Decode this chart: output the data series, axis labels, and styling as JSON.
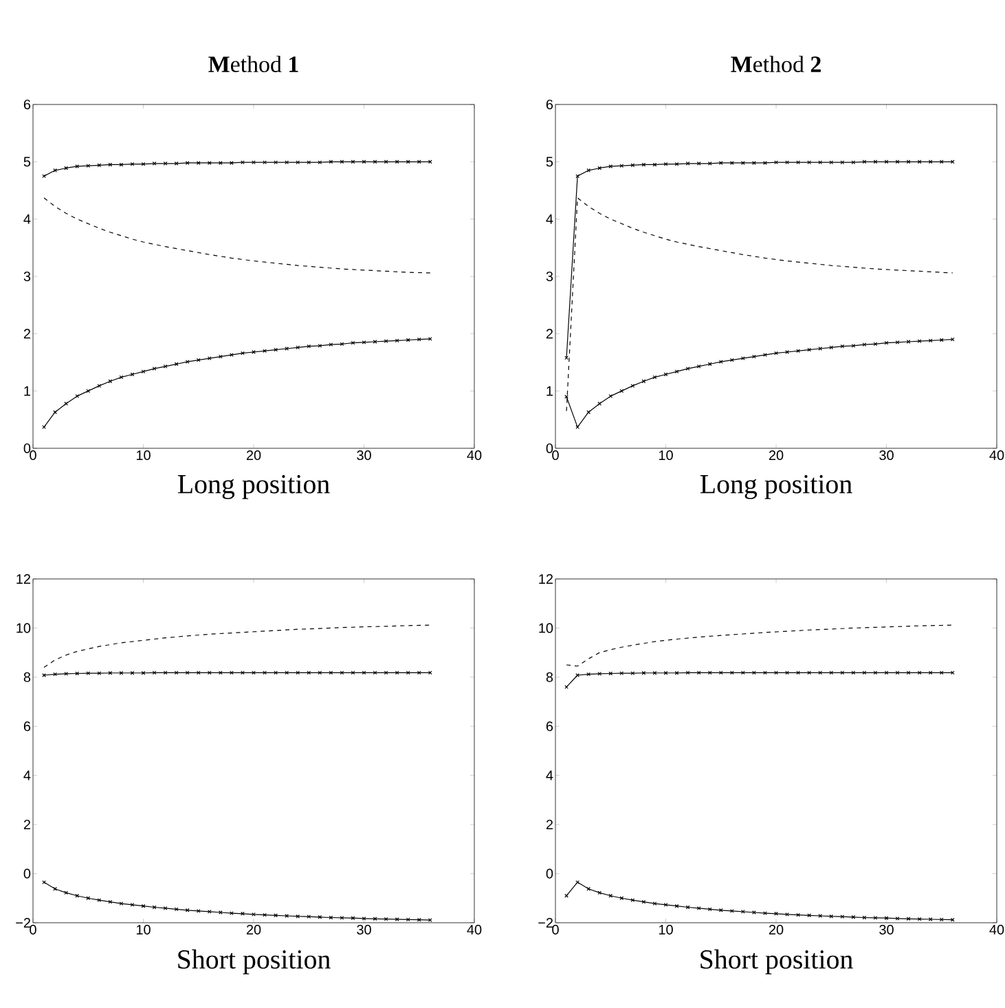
{
  "chart_data": [
    {
      "type": "line",
      "title": "**M**ethod **1**",
      "xlabel": "Long position",
      "xlim": [
        0,
        40
      ],
      "xticks": [
        0,
        10,
        20,
        30,
        40
      ],
      "ylim": [
        0,
        6
      ],
      "yticks": [
        0,
        1,
        2,
        3,
        4,
        5,
        6
      ],
      "x": [
        1,
        2,
        3,
        4,
        5,
        6,
        7,
        8,
        9,
        10,
        11,
        12,
        13,
        14,
        15,
        16,
        17,
        18,
        19,
        20,
        21,
        22,
        23,
        24,
        25,
        26,
        27,
        28,
        29,
        30,
        31,
        32,
        33,
        34,
        35,
        36
      ],
      "series": [
        {
          "color": "#000000",
          "marker": "cross",
          "line_style": "solid",
          "values": [
            4.75,
            4.85,
            4.89,
            4.92,
            4.93,
            4.94,
            4.95,
            4.95,
            4.96,
            4.96,
            4.97,
            4.97,
            4.97,
            4.98,
            4.98,
            4.98,
            4.98,
            4.98,
            4.99,
            4.99,
            4.99,
            4.99,
            4.99,
            4.99,
            4.99,
            4.99,
            5,
            5,
            5,
            5,
            5,
            5,
            5,
            5,
            5,
            5
          ]
        },
        {
          "color": "#000000",
          "marker": "none",
          "line_style": "dashed",
          "x": [
            1,
            2,
            3,
            4,
            5,
            6,
            7,
            8,
            9,
            10,
            12,
            14,
            16,
            18,
            20,
            22,
            24,
            26,
            28,
            30,
            32,
            34,
            36
          ],
          "values": [
            4.37,
            4.22,
            4.1,
            4.0,
            3.92,
            3.84,
            3.77,
            3.71,
            3.65,
            3.6,
            3.52,
            3.45,
            3.38,
            3.32,
            3.27,
            3.23,
            3.19,
            3.16,
            3.13,
            3.11,
            3.09,
            3.07,
            3.06
          ]
        },
        {
          "color": "#000000",
          "marker": "cross",
          "line_style": "solid",
          "values": [
            0.37,
            0.63,
            0.78,
            0.91,
            1.0,
            1.09,
            1.17,
            1.24,
            1.29,
            1.34,
            1.39,
            1.43,
            1.47,
            1.51,
            1.54,
            1.57,
            1.6,
            1.63,
            1.66,
            1.68,
            1.7,
            1.72,
            1.74,
            1.76,
            1.78,
            1.79,
            1.81,
            1.82,
            1.84,
            1.85,
            1.86,
            1.87,
            1.88,
            1.89,
            1.9,
            1.91
          ]
        }
      ]
    },
    {
      "type": "line",
      "title": "**M**ethod **2**",
      "xlabel": "Long position",
      "xlim": [
        0,
        40
      ],
      "xticks": [
        0,
        10,
        20,
        30,
        40
      ],
      "ylim": [
        0,
        6
      ],
      "yticks": [
        0,
        1,
        2,
        3,
        4,
        5,
        6
      ],
      "x": [
        1,
        2,
        3,
        4,
        5,
        6,
        7,
        8,
        9,
        10,
        11,
        12,
        13,
        14,
        15,
        16,
        17,
        18,
        19,
        20,
        21,
        22,
        23,
        24,
        25,
        26,
        27,
        28,
        29,
        30,
        31,
        32,
        33,
        34,
        35,
        36
      ],
      "series": [
        {
          "color": "#000000",
          "marker": "cross",
          "line_style": "solid",
          "values": [
            1.58,
            4.75,
            4.85,
            4.89,
            4.92,
            4.93,
            4.94,
            4.95,
            4.95,
            4.96,
            4.96,
            4.97,
            4.97,
            4.97,
            4.98,
            4.98,
            4.98,
            4.98,
            4.98,
            4.99,
            4.99,
            4.99,
            4.99,
            4.99,
            4.99,
            4.99,
            4.99,
            5,
            5,
            5,
            5,
            5,
            5,
            5,
            5,
            5
          ]
        },
        {
          "color": "#000000",
          "marker": "none",
          "line_style": "dashed",
          "x": [
            1,
            2,
            3,
            4,
            5,
            6,
            7,
            8,
            9,
            10,
            11,
            13,
            15,
            17,
            19,
            21,
            23,
            25,
            27,
            29,
            31,
            33,
            35,
            36
          ],
          "values": [
            0.65,
            4.37,
            4.22,
            4.1,
            4.0,
            3.92,
            3.84,
            3.77,
            3.71,
            3.65,
            3.6,
            3.52,
            3.45,
            3.38,
            3.32,
            3.27,
            3.23,
            3.19,
            3.16,
            3.13,
            3.11,
            3.09,
            3.07,
            3.06
          ]
        },
        {
          "color": "#000000",
          "marker": "cross",
          "line_style": "solid",
          "values": [
            0.9,
            0.37,
            0.63,
            0.78,
            0.91,
            1.0,
            1.09,
            1.17,
            1.24,
            1.29,
            1.34,
            1.39,
            1.43,
            1.47,
            1.51,
            1.54,
            1.57,
            1.6,
            1.63,
            1.66,
            1.68,
            1.7,
            1.72,
            1.74,
            1.76,
            1.78,
            1.79,
            1.81,
            1.82,
            1.84,
            1.85,
            1.86,
            1.87,
            1.88,
            1.89,
            1.9
          ]
        }
      ]
    },
    {
      "type": "line",
      "xlabel": "Short position",
      "xlim": [
        0,
        40
      ],
      "xticks": [
        0,
        10,
        20,
        30,
        40
      ],
      "ylim": [
        -2,
        12
      ],
      "yticks": [
        {
          "value": -2,
          "label": "−2"
        },
        0,
        2,
        4,
        6,
        8,
        10,
        12
      ],
      "x": [
        1,
        2,
        3,
        4,
        5,
        6,
        7,
        8,
        9,
        10,
        11,
        12,
        13,
        14,
        15,
        16,
        17,
        18,
        19,
        20,
        21,
        22,
        23,
        24,
        25,
        26,
        27,
        28,
        29,
        30,
        31,
        32,
        33,
        34,
        35,
        36
      ],
      "series": [
        {
          "color": "#000000",
          "marker": "none",
          "line_style": "dashed",
          "x": [
            1,
            2,
            3,
            4,
            5,
            6,
            8,
            10,
            12,
            14,
            16,
            18,
            20,
            22,
            24,
            26,
            28,
            30,
            32,
            34,
            36
          ],
          "values": [
            8.4,
            8.7,
            8.9,
            9.05,
            9.15,
            9.25,
            9.4,
            9.5,
            9.6,
            9.68,
            9.75,
            9.8,
            9.85,
            9.9,
            9.95,
            9.98,
            10.02,
            10.05,
            10.07,
            10.1,
            10.12
          ]
        },
        {
          "color": "#000000",
          "marker": "cross",
          "line_style": "solid",
          "values": [
            8.08,
            8.12,
            8.14,
            8.15,
            8.16,
            8.16,
            8.17,
            8.17,
            8.17,
            8.17,
            8.18,
            8.18,
            8.18,
            8.18,
            8.18,
            8.18,
            8.18,
            8.18,
            8.18,
            8.18,
            8.18,
            8.18,
            8.18,
            8.18,
            8.18,
            8.18,
            8.18,
            8.18,
            8.18,
            8.18,
            8.18,
            8.18,
            8.18,
            8.18,
            8.18,
            8.18
          ]
        },
        {
          "color": "#000000",
          "marker": "cross",
          "line_style": "solid",
          "values": [
            -0.35,
            -0.62,
            -0.78,
            -0.9,
            -1.0,
            -1.08,
            -1.15,
            -1.22,
            -1.27,
            -1.32,
            -1.37,
            -1.41,
            -1.45,
            -1.49,
            -1.52,
            -1.55,
            -1.58,
            -1.61,
            -1.63,
            -1.66,
            -1.68,
            -1.7,
            -1.72,
            -1.74,
            -1.75,
            -1.77,
            -1.79,
            -1.8,
            -1.81,
            -1.83,
            -1.84,
            -1.85,
            -1.86,
            -1.87,
            -1.88,
            -1.89
          ]
        }
      ]
    },
    {
      "type": "line",
      "xlabel": "Short position",
      "xlim": [
        0,
        40
      ],
      "xticks": [
        0,
        10,
        20,
        30,
        40
      ],
      "ylim": [
        -2,
        12
      ],
      "yticks": [
        {
          "value": -2,
          "label": "−2"
        },
        0,
        2,
        4,
        6,
        8,
        10,
        12
      ],
      "x": [
        1,
        2,
        3,
        4,
        5,
        6,
        7,
        8,
        9,
        10,
        11,
        12,
        13,
        14,
        15,
        16,
        17,
        18,
        19,
        20,
        21,
        22,
        23,
        24,
        25,
        26,
        27,
        28,
        29,
        30,
        31,
        32,
        33,
        34,
        35,
        36
      ],
      "series": [
        {
          "color": "#000000",
          "marker": "none",
          "line_style": "dashed",
          "x": [
            1,
            2,
            3,
            4,
            5,
            6,
            7,
            9,
            11,
            13,
            15,
            17,
            19,
            21,
            23,
            25,
            27,
            29,
            31,
            33,
            35,
            36
          ],
          "values": [
            8.5,
            8.45,
            8.75,
            9.0,
            9.12,
            9.22,
            9.3,
            9.45,
            9.55,
            9.63,
            9.7,
            9.76,
            9.82,
            9.87,
            9.92,
            9.96,
            10.0,
            10.03,
            10.06,
            10.09,
            10.11,
            10.12
          ]
        },
        {
          "color": "#000000",
          "marker": "cross",
          "line_style": "solid",
          "values": [
            7.6,
            8.08,
            8.12,
            8.14,
            8.15,
            8.16,
            8.16,
            8.17,
            8.17,
            8.17,
            8.17,
            8.18,
            8.18,
            8.18,
            8.18,
            8.18,
            8.18,
            8.18,
            8.18,
            8.18,
            8.18,
            8.18,
            8.18,
            8.18,
            8.18,
            8.18,
            8.18,
            8.18,
            8.18,
            8.18,
            8.18,
            8.18,
            8.18,
            8.18,
            8.18,
            8.18
          ]
        },
        {
          "color": "#000000",
          "marker": "cross",
          "line_style": "solid",
          "values": [
            -0.9,
            -0.35,
            -0.62,
            -0.78,
            -0.9,
            -1.0,
            -1.08,
            -1.15,
            -1.22,
            -1.27,
            -1.32,
            -1.37,
            -1.41,
            -1.45,
            -1.49,
            -1.52,
            -1.55,
            -1.58,
            -1.61,
            -1.63,
            -1.66,
            -1.68,
            -1.7,
            -1.72,
            -1.74,
            -1.75,
            -1.77,
            -1.79,
            -1.8,
            -1.81,
            -1.83,
            -1.84,
            -1.85,
            -1.86,
            -1.87,
            -1.88
          ]
        }
      ]
    }
  ]
}
